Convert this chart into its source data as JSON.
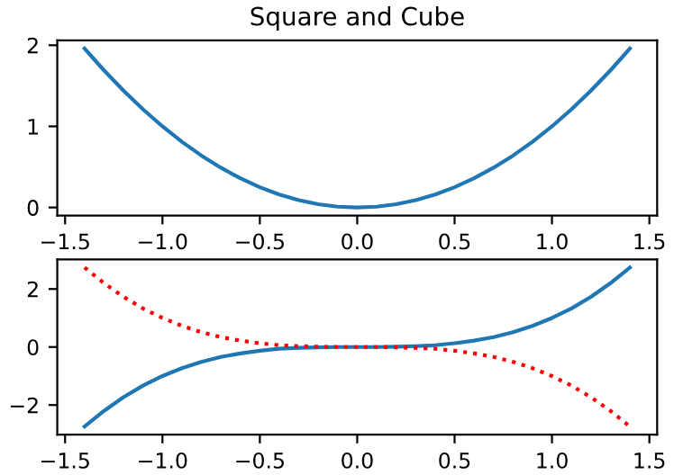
{
  "chart_data": [
    {
      "type": "line",
      "title": "Square and Cube",
      "x": [
        -1.4,
        -1.3,
        -1.2,
        -1.1,
        -1.0,
        -0.9,
        -0.8,
        -0.7,
        -0.6,
        -0.5,
        -0.4,
        -0.3,
        -0.2,
        -0.1,
        0.0,
        0.1,
        0.2,
        0.3,
        0.4,
        0.5,
        0.6,
        0.7,
        0.8,
        0.9,
        1.0,
        1.1,
        1.2,
        1.3,
        1.4
      ],
      "series": [
        {
          "color": "#1f77b4",
          "line_style": "solid",
          "values": [
            1.96,
            1.69,
            1.44,
            1.21,
            1.0,
            0.81,
            0.64,
            0.49,
            0.36,
            0.25,
            0.16,
            0.09,
            0.04,
            0.01,
            0.0,
            0.01,
            0.04,
            0.09,
            0.16,
            0.25,
            0.36,
            0.49,
            0.64,
            0.81,
            1.0,
            1.21,
            1.44,
            1.69,
            1.96
          ]
        }
      ],
      "xlim": [
        -1.54,
        1.54
      ],
      "xticks": [
        {
          "value": -1.5,
          "label": "−1.5"
        },
        {
          "value": -1.0,
          "label": "−1.0"
        },
        {
          "value": -0.5,
          "label": "−0.5"
        },
        {
          "value": 0.0,
          "label": "0.0"
        },
        {
          "value": 0.5,
          "label": "0.5"
        },
        {
          "value": 1.0,
          "label": "1.0"
        },
        {
          "value": 1.5,
          "label": "1.5"
        }
      ],
      "ylim": [
        -0.1,
        2.06
      ],
      "yticks": [
        0,
        1,
        2
      ],
      "grid": false,
      "legend": false
    },
    {
      "type": "line",
      "x": [
        -1.4,
        -1.3,
        -1.2,
        -1.1,
        -1.0,
        -0.9,
        -0.8,
        -0.7,
        -0.6,
        -0.5,
        -0.4,
        -0.3,
        -0.2,
        -0.1,
        0.0,
        0.1,
        0.2,
        0.3,
        0.4,
        0.5,
        0.6,
        0.7,
        0.8,
        0.9,
        1.0,
        1.1,
        1.2,
        1.3,
        1.4
      ],
      "series": [
        {
          "color": "#1f77b4",
          "line_style": "solid",
          "values": [
            -2.74,
            -2.2,
            -1.73,
            -1.33,
            -1.0,
            -0.73,
            -0.51,
            -0.34,
            -0.22,
            -0.13,
            -0.06,
            -0.03,
            -0.01,
            0.0,
            0.0,
            0.0,
            0.01,
            0.03,
            0.06,
            0.13,
            0.22,
            0.34,
            0.51,
            0.73,
            1.0,
            1.33,
            1.73,
            2.2,
            2.74
          ]
        },
        {
          "color": "#ff0000",
          "line_style": "dotted",
          "values": [
            2.74,
            2.2,
            1.73,
            1.33,
            1.0,
            0.73,
            0.51,
            0.34,
            0.22,
            0.13,
            0.06,
            0.03,
            0.01,
            0.0,
            0.0,
            0.0,
            -0.01,
            -0.03,
            -0.06,
            -0.13,
            -0.22,
            -0.34,
            -0.51,
            -0.73,
            -1.0,
            -1.33,
            -1.73,
            -2.2,
            -2.74
          ]
        }
      ],
      "xlim": [
        -1.54,
        1.54
      ],
      "xticks": [
        {
          "value": -1.5,
          "label": "−1.5"
        },
        {
          "value": -1.0,
          "label": "−1.0"
        },
        {
          "value": -0.5,
          "label": "−0.5"
        },
        {
          "value": 0.0,
          "label": "0.0"
        },
        {
          "value": 0.5,
          "label": "0.5"
        },
        {
          "value": 1.0,
          "label": "1.0"
        },
        {
          "value": 1.5,
          "label": "1.5"
        }
      ],
      "ylim": [
        -3.02,
        3.02
      ],
      "yticks": [
        {
          "value": -2,
          "label": "−2"
        },
        0,
        2
      ],
      "grid": false,
      "legend": false
    }
  ]
}
